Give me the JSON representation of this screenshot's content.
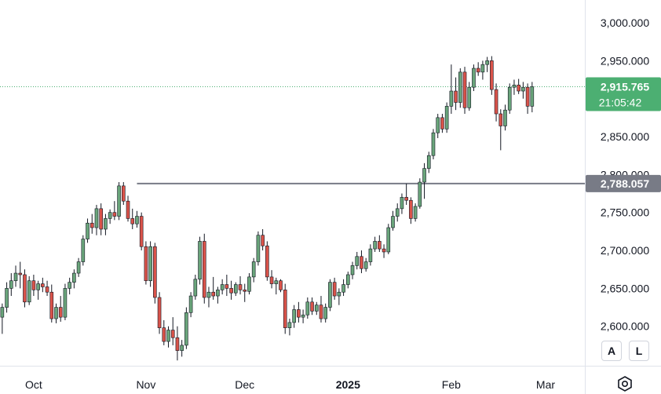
{
  "chart_data": {
    "type": "candlestick",
    "title": "",
    "xlabel": "",
    "ylabel": "",
    "ylim": [
      2548,
      3030
    ],
    "y_ticks": [
      "3,000.000",
      "2,950.000",
      "2,850.000",
      "2,800.000",
      "2,750.000",
      "2,700.000",
      "2,650.000",
      "2,600.000"
    ],
    "y_tick_values": [
      3000,
      2950,
      2850,
      2800,
      2750,
      2700,
      2650,
      2600
    ],
    "x_ticks": [
      "Oct",
      "Nov",
      "Dec",
      "2025",
      "Feb",
      "Mar"
    ],
    "x_tick_index": [
      7,
      32,
      54,
      77,
      100,
      121
    ],
    "grid": false,
    "colors": {
      "up": "#6aa57b",
      "down": "#d9534a",
      "wick": "#131722",
      "price_label": "#4caf72",
      "level_line": "#787b86"
    },
    "current_price": {
      "value": 2915.765,
      "label": "2,915.765",
      "countdown": "21:05:42"
    },
    "horizontal_level": {
      "value": 2788.057,
      "label": "2,788.057",
      "start_index": 30
    },
    "candles": [
      {
        "o": 2612,
        "h": 2630,
        "l": 2590,
        "c": 2625
      },
      {
        "o": 2625,
        "h": 2658,
        "l": 2618,
        "c": 2650
      },
      {
        "o": 2650,
        "h": 2670,
        "l": 2640,
        "c": 2660
      },
      {
        "o": 2660,
        "h": 2680,
        "l": 2652,
        "c": 2670
      },
      {
        "o": 2670,
        "h": 2685,
        "l": 2650,
        "c": 2668
      },
      {
        "o": 2668,
        "h": 2675,
        "l": 2625,
        "c": 2632
      },
      {
        "o": 2632,
        "h": 2666,
        "l": 2628,
        "c": 2660
      },
      {
        "o": 2660,
        "h": 2668,
        "l": 2640,
        "c": 2648
      },
      {
        "o": 2648,
        "h": 2660,
        "l": 2635,
        "c": 2656
      },
      {
        "o": 2656,
        "h": 2664,
        "l": 2645,
        "c": 2652
      },
      {
        "o": 2652,
        "h": 2660,
        "l": 2640,
        "c": 2645
      },
      {
        "o": 2645,
        "h": 2655,
        "l": 2605,
        "c": 2610
      },
      {
        "o": 2610,
        "h": 2630,
        "l": 2604,
        "c": 2625
      },
      {
        "o": 2625,
        "h": 2640,
        "l": 2606,
        "c": 2612
      },
      {
        "o": 2612,
        "h": 2656,
        "l": 2608,
        "c": 2650
      },
      {
        "o": 2650,
        "h": 2664,
        "l": 2642,
        "c": 2658
      },
      {
        "o": 2658,
        "h": 2675,
        "l": 2650,
        "c": 2670
      },
      {
        "o": 2670,
        "h": 2690,
        "l": 2665,
        "c": 2685
      },
      {
        "o": 2685,
        "h": 2720,
        "l": 2680,
        "c": 2715
      },
      {
        "o": 2715,
        "h": 2742,
        "l": 2710,
        "c": 2736
      },
      {
        "o": 2736,
        "h": 2748,
        "l": 2722,
        "c": 2730
      },
      {
        "o": 2730,
        "h": 2760,
        "l": 2720,
        "c": 2755
      },
      {
        "o": 2755,
        "h": 2762,
        "l": 2720,
        "c": 2728
      },
      {
        "o": 2728,
        "h": 2748,
        "l": 2720,
        "c": 2742
      },
      {
        "o": 2742,
        "h": 2754,
        "l": 2735,
        "c": 2750
      },
      {
        "o": 2750,
        "h": 2765,
        "l": 2740,
        "c": 2745
      },
      {
        "o": 2745,
        "h": 2790,
        "l": 2740,
        "c": 2785
      },
      {
        "o": 2785,
        "h": 2790,
        "l": 2760,
        "c": 2765
      },
      {
        "o": 2765,
        "h": 2772,
        "l": 2738,
        "c": 2742
      },
      {
        "o": 2742,
        "h": 2755,
        "l": 2728,
        "c": 2735
      },
      {
        "o": 2735,
        "h": 2752,
        "l": 2730,
        "c": 2745
      },
      {
        "o": 2745,
        "h": 2750,
        "l": 2700,
        "c": 2705
      },
      {
        "o": 2705,
        "h": 2712,
        "l": 2655,
        "c": 2660
      },
      {
        "o": 2660,
        "h": 2712,
        "l": 2652,
        "c": 2705
      },
      {
        "o": 2705,
        "h": 2710,
        "l": 2630,
        "c": 2638
      },
      {
        "o": 2638,
        "h": 2645,
        "l": 2590,
        "c": 2598
      },
      {
        "o": 2598,
        "h": 2608,
        "l": 2575,
        "c": 2580
      },
      {
        "o": 2580,
        "h": 2600,
        "l": 2572,
        "c": 2595
      },
      {
        "o": 2595,
        "h": 2612,
        "l": 2575,
        "c": 2585
      },
      {
        "o": 2585,
        "h": 2600,
        "l": 2555,
        "c": 2568
      },
      {
        "o": 2568,
        "h": 2582,
        "l": 2560,
        "c": 2575
      },
      {
        "o": 2575,
        "h": 2625,
        "l": 2570,
        "c": 2618
      },
      {
        "o": 2618,
        "h": 2645,
        "l": 2612,
        "c": 2640
      },
      {
        "o": 2640,
        "h": 2668,
        "l": 2635,
        "c": 2662
      },
      {
        "o": 2662,
        "h": 2718,
        "l": 2655,
        "c": 2712
      },
      {
        "o": 2712,
        "h": 2722,
        "l": 2630,
        "c": 2638
      },
      {
        "o": 2638,
        "h": 2652,
        "l": 2625,
        "c": 2645
      },
      {
        "o": 2645,
        "h": 2665,
        "l": 2635,
        "c": 2640
      },
      {
        "o": 2640,
        "h": 2652,
        "l": 2630,
        "c": 2648
      },
      {
        "o": 2648,
        "h": 2662,
        "l": 2642,
        "c": 2655
      },
      {
        "o": 2655,
        "h": 2668,
        "l": 2640,
        "c": 2650
      },
      {
        "o": 2650,
        "h": 2660,
        "l": 2635,
        "c": 2644
      },
      {
        "o": 2644,
        "h": 2658,
        "l": 2640,
        "c": 2655
      },
      {
        "o": 2655,
        "h": 2666,
        "l": 2642,
        "c": 2648
      },
      {
        "o": 2648,
        "h": 2656,
        "l": 2632,
        "c": 2646
      },
      {
        "o": 2646,
        "h": 2670,
        "l": 2642,
        "c": 2665
      },
      {
        "o": 2665,
        "h": 2690,
        "l": 2658,
        "c": 2685
      },
      {
        "o": 2685,
        "h": 2725,
        "l": 2680,
        "c": 2720
      },
      {
        "o": 2720,
        "h": 2728,
        "l": 2700,
        "c": 2706
      },
      {
        "o": 2706,
        "h": 2712,
        "l": 2660,
        "c": 2665
      },
      {
        "o": 2665,
        "h": 2674,
        "l": 2650,
        "c": 2656
      },
      {
        "o": 2656,
        "h": 2664,
        "l": 2642,
        "c": 2660
      },
      {
        "o": 2660,
        "h": 2662,
        "l": 2645,
        "c": 2648
      },
      {
        "o": 2648,
        "h": 2656,
        "l": 2590,
        "c": 2598
      },
      {
        "o": 2598,
        "h": 2610,
        "l": 2588,
        "c": 2605
      },
      {
        "o": 2605,
        "h": 2628,
        "l": 2598,
        "c": 2622
      },
      {
        "o": 2622,
        "h": 2632,
        "l": 2605,
        "c": 2612
      },
      {
        "o": 2612,
        "h": 2622,
        "l": 2604,
        "c": 2615
      },
      {
        "o": 2615,
        "h": 2638,
        "l": 2610,
        "c": 2632
      },
      {
        "o": 2632,
        "h": 2638,
        "l": 2615,
        "c": 2620
      },
      {
        "o": 2620,
        "h": 2632,
        "l": 2615,
        "c": 2628
      },
      {
        "o": 2628,
        "h": 2640,
        "l": 2605,
        "c": 2610
      },
      {
        "o": 2610,
        "h": 2630,
        "l": 2605,
        "c": 2625
      },
      {
        "o": 2625,
        "h": 2662,
        "l": 2620,
        "c": 2658
      },
      {
        "o": 2658,
        "h": 2664,
        "l": 2635,
        "c": 2640
      },
      {
        "o": 2640,
        "h": 2650,
        "l": 2628,
        "c": 2645
      },
      {
        "o": 2645,
        "h": 2662,
        "l": 2640,
        "c": 2655
      },
      {
        "o": 2655,
        "h": 2672,
        "l": 2650,
        "c": 2668
      },
      {
        "o": 2668,
        "h": 2685,
        "l": 2662,
        "c": 2680
      },
      {
        "o": 2680,
        "h": 2698,
        "l": 2675,
        "c": 2692
      },
      {
        "o": 2692,
        "h": 2700,
        "l": 2670,
        "c": 2676
      },
      {
        "o": 2676,
        "h": 2690,
        "l": 2672,
        "c": 2685
      },
      {
        "o": 2685,
        "h": 2708,
        "l": 2680,
        "c": 2702
      },
      {
        "o": 2702,
        "h": 2718,
        "l": 2698,
        "c": 2712
      },
      {
        "o": 2712,
        "h": 2720,
        "l": 2698,
        "c": 2702
      },
      {
        "o": 2702,
        "h": 2708,
        "l": 2690,
        "c": 2698
      },
      {
        "o": 2698,
        "h": 2735,
        "l": 2695,
        "c": 2730
      },
      {
        "o": 2730,
        "h": 2752,
        "l": 2726,
        "c": 2745
      },
      {
        "o": 2745,
        "h": 2762,
        "l": 2738,
        "c": 2755
      },
      {
        "o": 2755,
        "h": 2775,
        "l": 2748,
        "c": 2770
      },
      {
        "o": 2770,
        "h": 2788,
        "l": 2760,
        "c": 2766
      },
      {
        "o": 2766,
        "h": 2770,
        "l": 2735,
        "c": 2742
      },
      {
        "o": 2742,
        "h": 2762,
        "l": 2738,
        "c": 2758
      },
      {
        "o": 2758,
        "h": 2795,
        "l": 2755,
        "c": 2790
      },
      {
        "o": 2790,
        "h": 2815,
        "l": 2768,
        "c": 2808
      },
      {
        "o": 2808,
        "h": 2830,
        "l": 2802,
        "c": 2825
      },
      {
        "o": 2825,
        "h": 2860,
        "l": 2820,
        "c": 2855
      },
      {
        "o": 2855,
        "h": 2880,
        "l": 2848,
        "c": 2875
      },
      {
        "o": 2875,
        "h": 2880,
        "l": 2855,
        "c": 2860
      },
      {
        "o": 2860,
        "h": 2895,
        "l": 2855,
        "c": 2890
      },
      {
        "o": 2890,
        "h": 2945,
        "l": 2880,
        "c": 2910
      },
      {
        "o": 2910,
        "h": 2928,
        "l": 2885,
        "c": 2895
      },
      {
        "o": 2895,
        "h": 2940,
        "l": 2888,
        "c": 2935
      },
      {
        "o": 2935,
        "h": 2942,
        "l": 2880,
        "c": 2888
      },
      {
        "o": 2888,
        "h": 2922,
        "l": 2884,
        "c": 2915
      },
      {
        "o": 2915,
        "h": 2945,
        "l": 2910,
        "c": 2940
      },
      {
        "o": 2940,
        "h": 2948,
        "l": 2930,
        "c": 2935
      },
      {
        "o": 2935,
        "h": 2950,
        "l": 2925,
        "c": 2945
      },
      {
        "o": 2945,
        "h": 2955,
        "l": 2935,
        "c": 2950
      },
      {
        "o": 2950,
        "h": 2956,
        "l": 2905,
        "c": 2912
      },
      {
        "o": 2912,
        "h": 2920,
        "l": 2870,
        "c": 2880
      },
      {
        "o": 2880,
        "h": 2886,
        "l": 2832,
        "c": 2864
      },
      {
        "o": 2864,
        "h": 2892,
        "l": 2858,
        "c": 2885
      },
      {
        "o": 2885,
        "h": 2920,
        "l": 2880,
        "c": 2915
      },
      {
        "o": 2915,
        "h": 2925,
        "l": 2905,
        "c": 2918
      },
      {
        "o": 2918,
        "h": 2926,
        "l": 2906,
        "c": 2910
      },
      {
        "o": 2910,
        "h": 2922,
        "l": 2900,
        "c": 2915
      },
      {
        "o": 2915,
        "h": 2920,
        "l": 2880,
        "c": 2890
      },
      {
        "o": 2890,
        "h": 2922,
        "l": 2882,
        "c": 2915.765
      }
    ]
  },
  "scale_buttons": {
    "auto": "A",
    "log": "L"
  },
  "icons": {
    "settings": "settings-icon"
  }
}
